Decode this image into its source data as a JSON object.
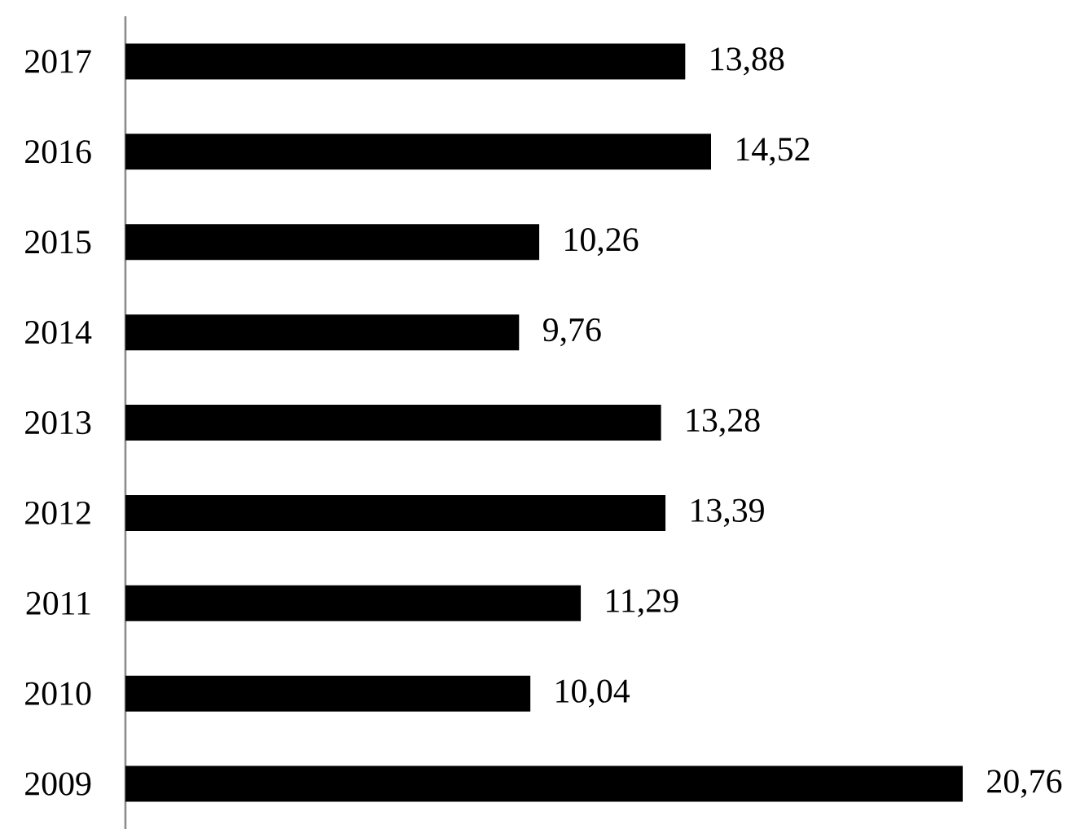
{
  "chart_data": {
    "type": "bar",
    "orientation": "horizontal",
    "categories": [
      "2017",
      "2016",
      "2015",
      "2014",
      "2013",
      "2012",
      "2011",
      "2010",
      "2009"
    ],
    "values": [
      13.88,
      14.52,
      10.26,
      9.76,
      13.28,
      13.39,
      11.29,
      10.04,
      20.76
    ],
    "value_labels": [
      "13,88",
      "14,52",
      "10,26",
      "9,76",
      "13,28",
      "13,39",
      "11,29",
      "10,04",
      "20,76"
    ],
    "color": "#000000"
  }
}
